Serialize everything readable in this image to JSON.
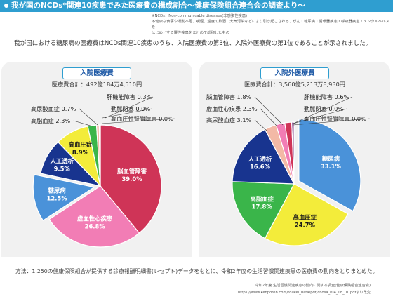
{
  "header": {
    "title": "我が国のNCDs*関連10疾患でみた医療費の構成割合〜健康保険組合連合会の調査より〜"
  },
  "note": {
    "line1": "※NCDs：Non-communicable diseases(非感染性疾患)",
    "line2": "不健康な食事や運動不足、喫煙、過度の飲酒、大気汚染などにより引き起こされる、がん・糖尿病・循環器疾患・呼吸器疾患・メンタルヘルスを",
    "line3": "はじめとする慢性疾患をまとめて総称したもの"
  },
  "intro": "我が国における糖尿病の医療費はNCDs関連10疾患のうち、入院医療費の第3位、入院外医療費の第1位であることが示されました。",
  "method": "方法：1,250の健康保険組合が提供する診療報酬明細書(レセプト)データをもとに、令和2年度の生活習慣関連疾患の医療費の動向をとりまとめた。",
  "source": {
    "line1": "令和2年度 生活習慣関連疾患の動向に関する調査(健康保険組合連合会)",
    "line2": "https://www.kenporen.com/toukei_data/pdf/chosa_r04_08_01.pdfより改変"
  },
  "chart_data": [
    {
      "type": "pie",
      "title": "入院医療費",
      "subtitle": "医療費合計：492億184万4,510円",
      "slices": [
        {
          "label": "脳血管障害",
          "value": 39.0,
          "value_label": "39.0%",
          "color": "#cf3457"
        },
        {
          "label": "虚血性心疾患",
          "value": 26.8,
          "value_label": "26.8%",
          "color": "#f27db5"
        },
        {
          "label": "糖尿病",
          "value": 12.5,
          "value_label": "12.5%",
          "color": "#4a92d9"
        },
        {
          "label": "人工透析",
          "value": 9.5,
          "value_label": "9.5%",
          "color": "#18348f"
        },
        {
          "label": "高血圧症",
          "value": 8.9,
          "value_label": "8.9%",
          "color": "#f3ec3a"
        },
        {
          "label": "高脂血症",
          "value": 2.3,
          "value_label": "2.3%",
          "color": "#3ab54a"
        },
        {
          "label": "高尿酸血症",
          "value": 0.7,
          "value_label": "0.7%",
          "color": "#f3b9a6"
        },
        {
          "label": "肝機能障害",
          "value": 0.3,
          "value_label": "0.3%",
          "color": "#6a1b6e"
        },
        {
          "label": "動脈閉塞",
          "value": 0.0,
          "value_label": "0.0%",
          "color": "#aaaaaa"
        },
        {
          "label": "高血圧性腎臓障害",
          "value": 0.0,
          "value_label": "0.0%",
          "color": "#777777"
        }
      ]
    },
    {
      "type": "pie",
      "title": "入院外医療費",
      "subtitle": "医療費合計：3,560億5,213万8,930円",
      "slices": [
        {
          "label": "糖尿病",
          "value": 33.1,
          "value_label": "33.1%",
          "color": "#4a92d9"
        },
        {
          "label": "高血圧症",
          "value": 24.7,
          "value_label": "24.7%",
          "color": "#f3ec3a"
        },
        {
          "label": "高脂血症",
          "value": 17.8,
          "value_label": "17.8%",
          "color": "#3ab54a"
        },
        {
          "label": "人工透析",
          "value": 16.6,
          "value_label": "16.6%",
          "color": "#18348f"
        },
        {
          "label": "高尿酸血症",
          "value": 3.1,
          "value_label": "3.1%",
          "color": "#f3b9a6"
        },
        {
          "label": "虚血性心疾患",
          "value": 2.3,
          "value_label": "2.3%",
          "color": "#f27db5"
        },
        {
          "label": "脳血管障害",
          "value": 1.8,
          "value_label": "1.8%",
          "color": "#cf3457"
        },
        {
          "label": "肝機能障害",
          "value": 0.6,
          "value_label": "0.6%",
          "color": "#6a1b6e"
        },
        {
          "label": "動脈閉塞",
          "value": 0.0,
          "value_label": "0.0%",
          "color": "#aaaaaa"
        },
        {
          "label": "高血圧性腎臓障害",
          "value": 0.0,
          "value_label": "0.0%",
          "color": "#777777"
        }
      ]
    }
  ]
}
